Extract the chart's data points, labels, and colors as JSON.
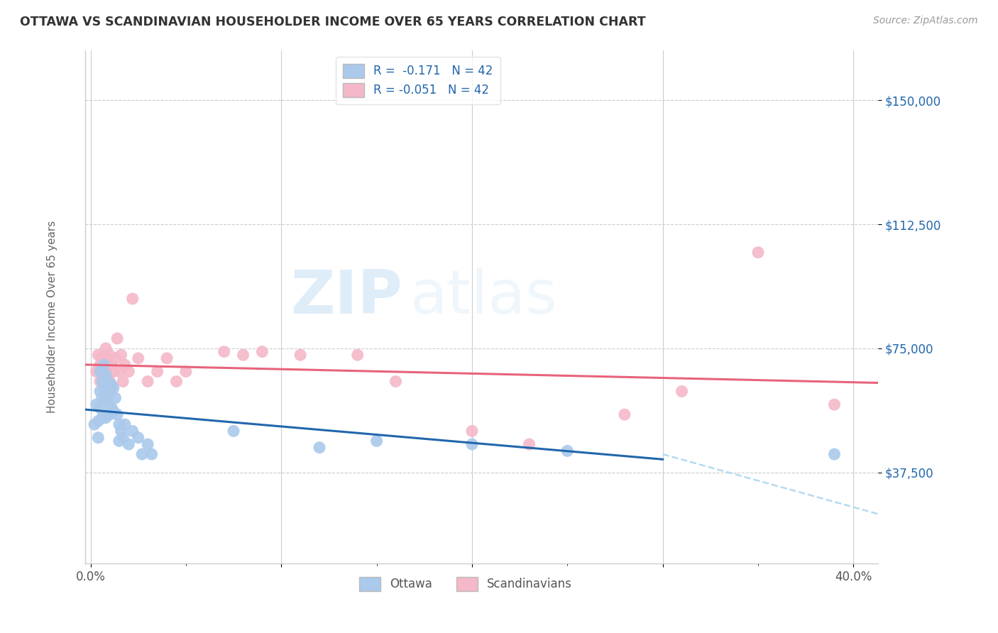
{
  "title": "OTTAWA VS SCANDINAVIAN HOUSEHOLDER INCOME OVER 65 YEARS CORRELATION CHART",
  "source": "Source: ZipAtlas.com",
  "ylabel": "Householder Income Over 65 years",
  "ytick_labels": [
    "$150,000",
    "$112,500",
    "$75,000",
    "$37,500"
  ],
  "ytick_values": [
    150000,
    112500,
    75000,
    37500
  ],
  "ymin": 10000,
  "ymax": 165000,
  "xmin": -0.003,
  "xmax": 0.413,
  "ottawa_R": "-0.171",
  "ottawa_N": "42",
  "scand_R": "-0.051",
  "scand_N": "42",
  "legend_labels": [
    "Ottawa",
    "Scandinavians"
  ],
  "ottawa_color": "#aac9eb",
  "scand_color": "#f4b8c8",
  "ottawa_line_color": "#2166ac",
  "scand_line_color": "#e8637a",
  "dashed_color": "#a8d4f0",
  "watermark_zip": "ZIP",
  "watermark_atlas": "atlas",
  "grid_color": "#cccccc",
  "ottawa_x": [
    0.002,
    0.003,
    0.004,
    0.004,
    0.005,
    0.005,
    0.005,
    0.006,
    0.006,
    0.006,
    0.007,
    0.007,
    0.008,
    0.008,
    0.008,
    0.009,
    0.009,
    0.01,
    0.01,
    0.011,
    0.011,
    0.012,
    0.012,
    0.013,
    0.014,
    0.015,
    0.015,
    0.016,
    0.017,
    0.018,
    0.02,
    0.022,
    0.025,
    0.027,
    0.03,
    0.032,
    0.075,
    0.12,
    0.15,
    0.2,
    0.25,
    0.39
  ],
  "ottawa_y": [
    52000,
    58000,
    48000,
    53000,
    68000,
    62000,
    57000,
    65000,
    60000,
    54000,
    70000,
    63000,
    67000,
    60000,
    54000,
    65000,
    59000,
    62000,
    55000,
    64000,
    57000,
    63000,
    56000,
    60000,
    55000,
    52000,
    47000,
    50000,
    48000,
    52000,
    46000,
    50000,
    48000,
    43000,
    46000,
    43000,
    50000,
    45000,
    47000,
    46000,
    44000,
    43000
  ],
  "scand_x": [
    0.003,
    0.004,
    0.005,
    0.005,
    0.006,
    0.006,
    0.007,
    0.008,
    0.008,
    0.009,
    0.009,
    0.01,
    0.01,
    0.011,
    0.011,
    0.012,
    0.013,
    0.014,
    0.015,
    0.016,
    0.017,
    0.018,
    0.02,
    0.022,
    0.025,
    0.03,
    0.035,
    0.04,
    0.045,
    0.05,
    0.07,
    0.08,
    0.09,
    0.11,
    0.14,
    0.16,
    0.2,
    0.23,
    0.28,
    0.31,
    0.35,
    0.39
  ],
  "scand_y": [
    68000,
    73000,
    65000,
    70000,
    72000,
    65000,
    69000,
    75000,
    68000,
    72000,
    66000,
    73000,
    65000,
    70000,
    63000,
    68000,
    72000,
    78000,
    68000,
    73000,
    65000,
    70000,
    68000,
    90000,
    72000,
    65000,
    68000,
    72000,
    65000,
    68000,
    74000,
    73000,
    74000,
    73000,
    73000,
    65000,
    50000,
    46000,
    55000,
    62000,
    104000,
    58000
  ],
  "solid_line_end_x": 0.3,
  "dashed_line_start_x": 0.3
}
